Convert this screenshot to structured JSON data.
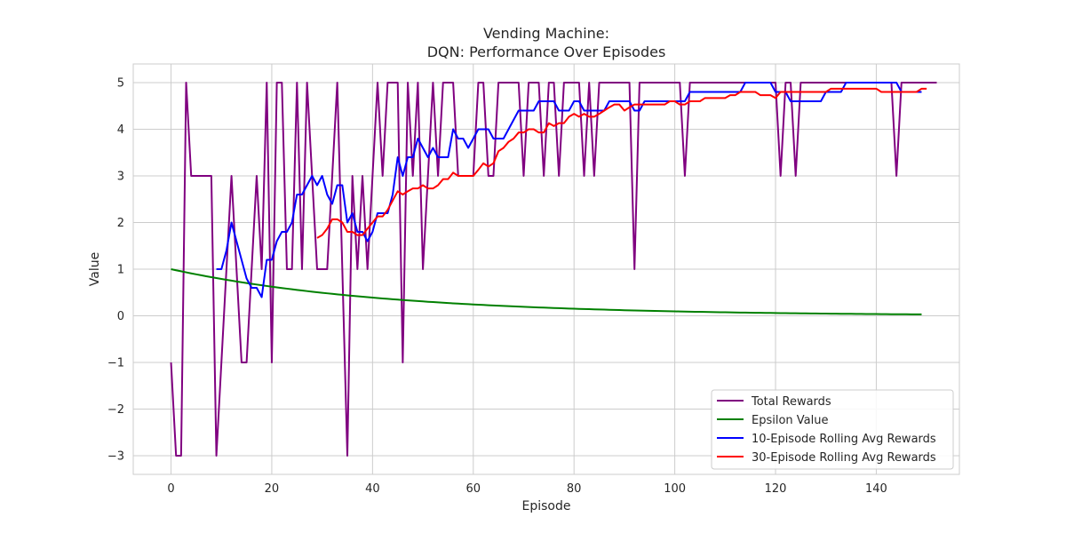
{
  "chart_data": {
    "type": "line",
    "title": [
      "Vending Machine:",
      "DQN: Performance Over Episodes"
    ],
    "xlabel": "Episode",
    "ylabel": "Value",
    "xlim": [
      -7.5,
      156.5
    ],
    "ylim": [
      -3.4,
      5.4
    ],
    "xticks": [
      0,
      20,
      40,
      60,
      80,
      100,
      120,
      140
    ],
    "yticks": [
      -3,
      -2,
      -1,
      0,
      1,
      2,
      3,
      4,
      5
    ],
    "ytick_labels": [
      "−3",
      "−2",
      "−1",
      "0",
      "1",
      "2",
      "3",
      "4",
      "5"
    ],
    "grid": true,
    "legend_placement": "lower-right",
    "series": [
      {
        "name": "Total Rewards",
        "color": "#800080",
        "x_start": 0,
        "values": [
          -1,
          -3,
          -3,
          5,
          3,
          3,
          3,
          3,
          3,
          -3,
          -1,
          1,
          3,
          1,
          -1,
          -1,
          1,
          3,
          1,
          5,
          -1,
          5,
          5,
          1,
          1,
          5,
          1,
          5,
          3,
          1,
          1,
          1,
          3,
          5,
          1,
          -3,
          3,
          1,
          3,
          1,
          3,
          5,
          3,
          5,
          5,
          5,
          -1,
          5,
          3,
          5,
          1,
          3,
          5,
          3,
          5,
          5,
          5,
          3,
          3,
          3,
          3,
          5,
          5,
          3,
          3,
          5,
          5,
          5,
          5,
          5,
          3,
          5,
          5,
          5,
          3,
          5,
          5,
          3,
          5,
          5,
          5,
          5,
          3,
          5,
          3,
          5,
          5,
          5,
          5,
          5,
          5,
          5,
          1,
          5,
          5,
          5,
          5,
          5,
          5,
          5,
          5,
          5,
          3,
          5,
          5,
          5,
          5,
          5,
          5,
          5,
          5,
          5,
          5,
          5,
          5,
          5,
          5,
          5,
          5,
          5,
          5,
          3,
          5,
          5,
          3,
          5,
          5,
          5,
          5,
          5,
          5,
          5,
          5,
          5,
          5,
          5,
          5,
          5,
          5,
          5,
          5,
          5,
          5,
          5,
          3,
          5,
          5,
          5,
          5,
          5,
          5,
          5,
          5
        ]
      },
      {
        "name": "Epsilon Value",
        "color": "#008000",
        "x_start": 0,
        "function": "epsilon_decay",
        "epsilon_start": 1.0,
        "epsilon_end": 0.03,
        "episodes": 150
      },
      {
        "name": "10-Episode Rolling Avg Rewards",
        "color": "#0000ff",
        "x_start": 9,
        "values": [
          1,
          1,
          1.4,
          2,
          1.6,
          1.2,
          0.8,
          0.6,
          0.6,
          0.4,
          1.2,
          1.2,
          1.6,
          1.8,
          1.8,
          2.0,
          2.6,
          2.6,
          2.8,
          3.0,
          2.8,
          3.0,
          2.6,
          2.4,
          2.8,
          2.8,
          2.0,
          2.2,
          1.8,
          1.8,
          1.6,
          1.8,
          2.2,
          2.2,
          2.2,
          2.6,
          3.4,
          3.0,
          3.4,
          3.4,
          3.8,
          3.6,
          3.4,
          3.6,
          3.4,
          3.4,
          3.4,
          4.0,
          3.8,
          3.8,
          3.6,
          3.8,
          4.0,
          4.0,
          4.0,
          3.8,
          3.8,
          3.8,
          4.0,
          4.2,
          4.4,
          4.4,
          4.4,
          4.4,
          4.6,
          4.6,
          4.6,
          4.6,
          4.4,
          4.4,
          4.4,
          4.6,
          4.6,
          4.4,
          4.4,
          4.4,
          4.4,
          4.4,
          4.6,
          4.6,
          4.6,
          4.6,
          4.6,
          4.4,
          4.4,
          4.6,
          4.6,
          4.6,
          4.6,
          4.6,
          4.6,
          4.6,
          4.6,
          4.6,
          4.8,
          4.8,
          4.8,
          4.8,
          4.8,
          4.8,
          4.8,
          4.8,
          4.8,
          4.8,
          4.8,
          5,
          5,
          5,
          5,
          5,
          5,
          4.8,
          4.8,
          4.8,
          4.6,
          4.6,
          4.6,
          4.6,
          4.6,
          4.6,
          4.6,
          4.8,
          4.8,
          4.8,
          4.8,
          5,
          5,
          5,
          5,
          5,
          5,
          5,
          5,
          5,
          5,
          5,
          4.8,
          4.8,
          4.8,
          4.8,
          4.8
        ]
      },
      {
        "name": "30-Episode Rolling Avg Rewards",
        "color": "#ff0000",
        "x_start": 29,
        "values": [
          1.67,
          1.73,
          1.87,
          2.07,
          2.07,
          2.0,
          1.8,
          1.8,
          1.73,
          1.73,
          1.87,
          2.0,
          2.13,
          2.13,
          2.27,
          2.47,
          2.67,
          2.6,
          2.67,
          2.73,
          2.73,
          2.8,
          2.73,
          2.73,
          2.8,
          2.93,
          2.93,
          3.07,
          3.0,
          3.0,
          3.0,
          3.0,
          3.13,
          3.27,
          3.2,
          3.27,
          3.53,
          3.6,
          3.73,
          3.8,
          3.93,
          3.93,
          4.0,
          4.0,
          3.93,
          3.93,
          4.13,
          4.07,
          4.13,
          4.13,
          4.27,
          4.33,
          4.27,
          4.33,
          4.27,
          4.27,
          4.33,
          4.4,
          4.47,
          4.53,
          4.53,
          4.4,
          4.47,
          4.53,
          4.53,
          4.53,
          4.53,
          4.53,
          4.53,
          4.53,
          4.6,
          4.6,
          4.53,
          4.53,
          4.6,
          4.6,
          4.6,
          4.67,
          4.67,
          4.67,
          4.67,
          4.67,
          4.73,
          4.73,
          4.8,
          4.8,
          4.8,
          4.8,
          4.73,
          4.73,
          4.73,
          4.67,
          4.8,
          4.8,
          4.8,
          4.8,
          4.8,
          4.8,
          4.8,
          4.8,
          4.8,
          4.8,
          4.87,
          4.87,
          4.87,
          4.87,
          4.87,
          4.87,
          4.87,
          4.87,
          4.87,
          4.87,
          4.8,
          4.8,
          4.8,
          4.8,
          4.8,
          4.8,
          4.8,
          4.8,
          4.87,
          4.87
        ]
      }
    ]
  }
}
